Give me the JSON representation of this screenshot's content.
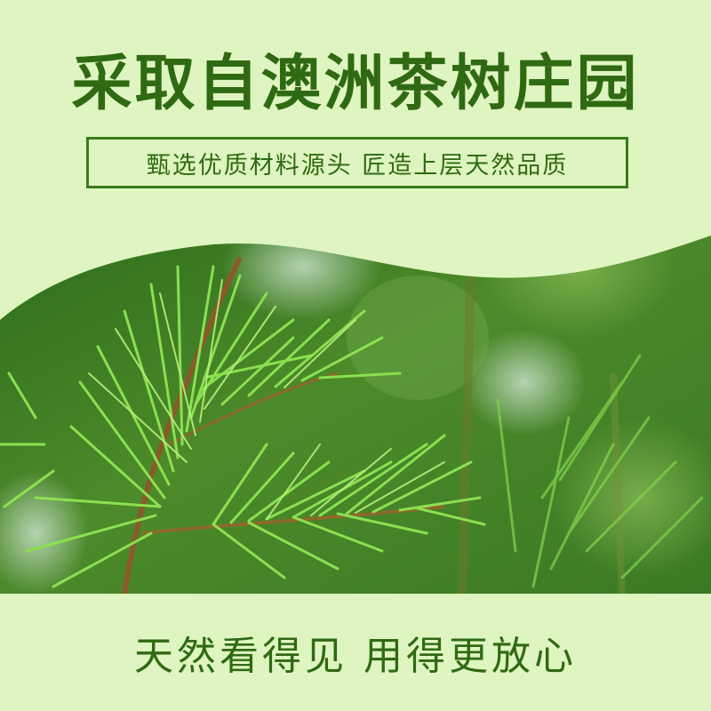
{
  "headline": "采取自澳洲茶树庄园",
  "subtitle": "甄选优质材料源头  匠造上层天然品质",
  "slogan": "天然看得见  用得更放心",
  "photo": {
    "icon": "tea-tree-branch-photo"
  },
  "colors": {
    "background": "#dff5c1",
    "text": "#2f6a12",
    "border": "#3a7a1c"
  }
}
